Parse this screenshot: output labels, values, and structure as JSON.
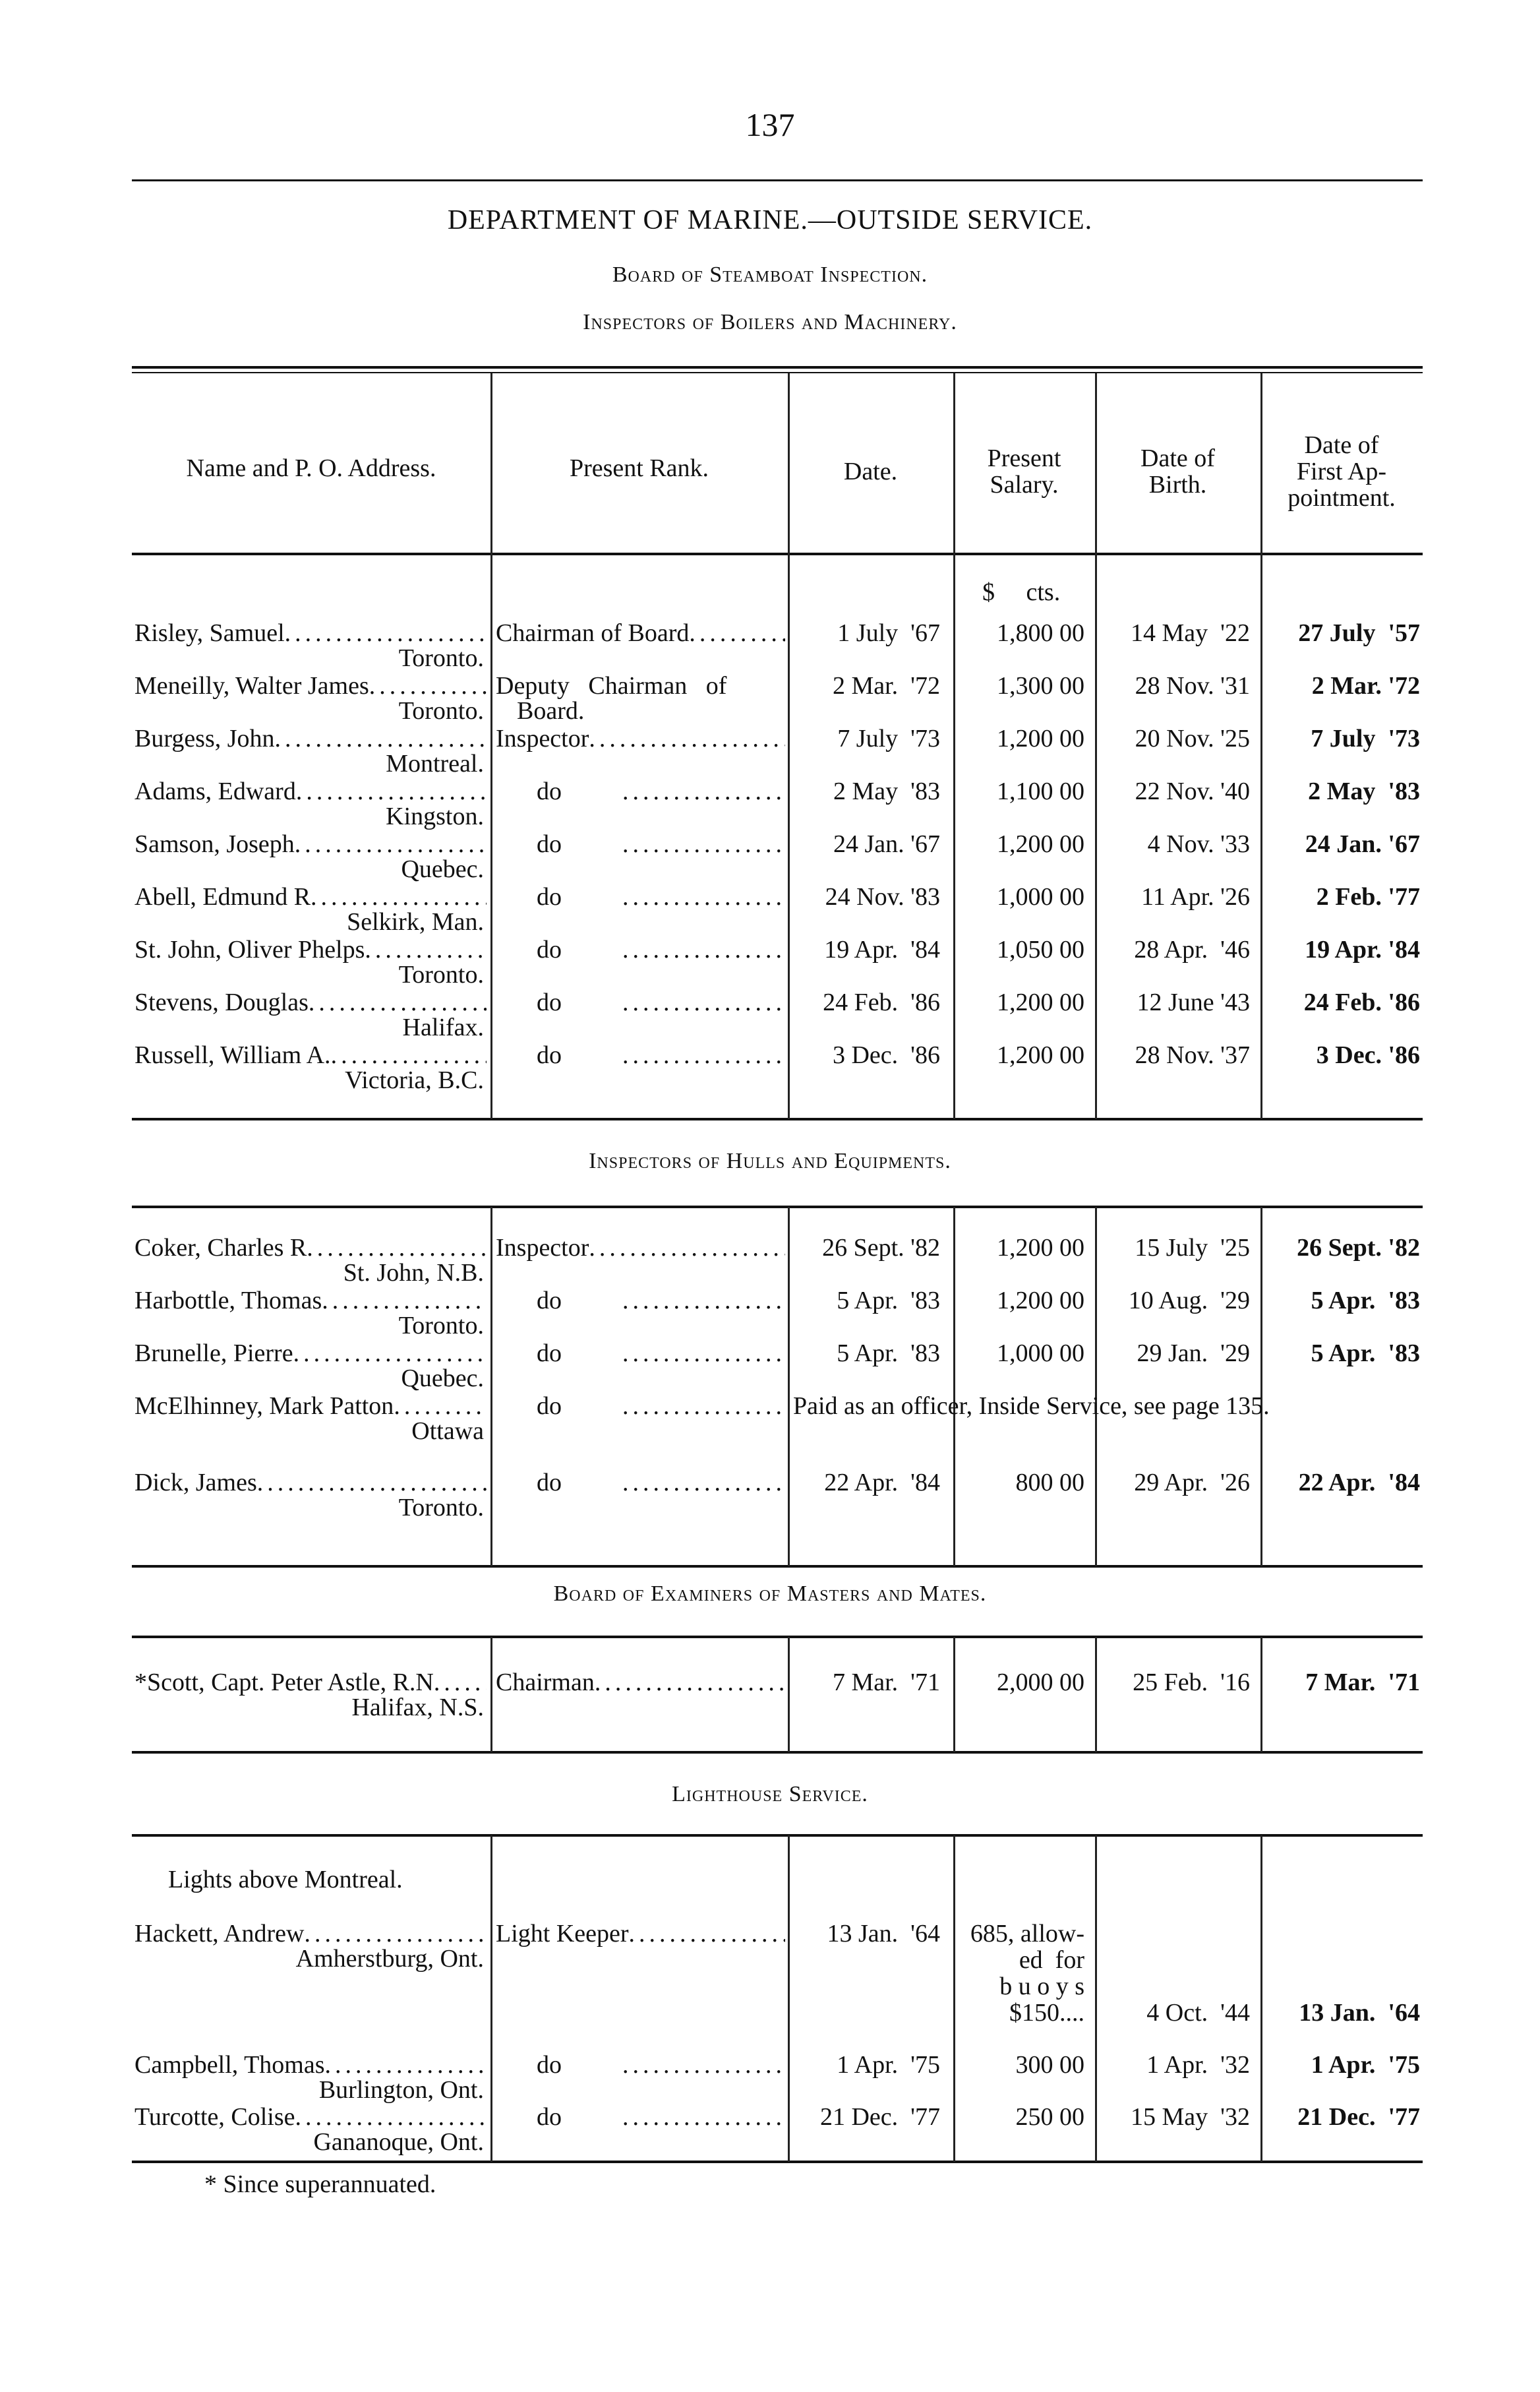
{
  "page_number": "137",
  "title": "DEPARTMENT OF MARINE.—OUTSIDE SERVICE.",
  "board_heading": "Board of Steamboat Inspection.",
  "headers": {
    "name": "Name and P. O. Address.",
    "rank": "Present Rank.",
    "date": "Date.",
    "salary_1": "Present",
    "salary_2": "Salary.",
    "birth_1": "Date of",
    "birth_2": "Birth.",
    "first_1": "Date of",
    "first_2": "First Ap-",
    "first_3": "pointment."
  },
  "currency_units": "$     cts.",
  "sections": [
    {
      "heading": "Inspectors of Boilers and Machinery.",
      "rows": [
        {
          "name": "Risley, Samuel",
          "place": "Toronto.",
          "rank": "Chairman of Board",
          "date": "1 July  '67",
          "salary": "1,800 00",
          "birth": "14 May  '22",
          "first": "27 July  '57"
        },
        {
          "name": "Meneilly, Walter James",
          "place": "Toronto.",
          "rank": "Deputy   Chairman   of",
          "rank_2": "Board.",
          "date": "2 Mar.  '72",
          "salary": "1,300 00",
          "birth": "28 Nov. '31",
          "first": "2 Mar. '72"
        },
        {
          "name": "Burgess, John",
          "place": "Montreal.",
          "rank": "Inspector",
          "date": "7 July  '73",
          "salary": "1,200 00",
          "birth": "20 Nov. '25",
          "first": "7 July  '73"
        },
        {
          "name": "Adams, Edward",
          "place": "Kingston.",
          "rank": "do",
          "date": "2 May  '83",
          "salary": "1,100 00",
          "birth": "22 Nov. '40",
          "first": "2 May  '83"
        },
        {
          "name": "Samson, Joseph",
          "place": "Quebec.",
          "rank": "do",
          "date": "24 Jan. '67",
          "salary": "1,200 00",
          "birth": "4 Nov. '33",
          "first": "24 Jan. '67"
        },
        {
          "name": "Abell, Edmund R",
          "place": "Selkirk, Man.",
          "rank": "do",
          "date": "24 Nov. '83",
          "salary": "1,000 00",
          "birth": "11 Apr. '26",
          "first": "2 Feb. '77"
        },
        {
          "name": "St. John, Oliver Phelps",
          "place": "Toronto.",
          "rank": "do",
          "date": "19 Apr.  '84",
          "salary": "1,050 00",
          "birth": "28 Apr.  '46",
          "first": "19 Apr. '84"
        },
        {
          "name": "Stevens, Douglas",
          "place": "Halifax.",
          "rank": "do",
          "date": "24 Feb.  '86",
          "salary": "1,200 00",
          "birth": "12 June '43",
          "first": "24 Feb. '86"
        },
        {
          "name": "Russell, William A.",
          "place": "Victoria, B.C.",
          "rank": "do",
          "date": "3 Dec.  '86",
          "salary": "1,200 00",
          "birth": "28 Nov. '37",
          "first": "3 Dec. '86"
        }
      ]
    },
    {
      "heading": "Inspectors of Hulls and Equipments.",
      "rows": [
        {
          "name": "Coker, Charles R",
          "place": "St. John, N.B.",
          "rank": "Inspector",
          "date": "26 Sept. '82",
          "salary": "1,200 00",
          "birth": "15 July  '25",
          "first": "26 Sept. '82"
        },
        {
          "name": "Harbottle, Thomas",
          "place": "Toronto.",
          "rank": "do",
          "date": "5 Apr.  '83",
          "salary": "1,200 00",
          "birth": "10 Aug.  '29",
          "first": "5 Apr.  '83"
        },
        {
          "name": "Brunelle, Pierre",
          "place": "Quebec.",
          "rank": "do",
          "date": "5 Apr.  '83",
          "salary": "1,000 00",
          "birth": "29 Jan.  '29",
          "first": "5 Apr.  '83"
        },
        {
          "name": "McElhinney, Mark Patton",
          "place": "Ottawa",
          "rank": "do",
          "note": "Paid as an officer, Inside Service, see page 135."
        },
        {
          "name": "Dick, James",
          "place": "Toronto.",
          "rank": "do",
          "date": "22 Apr.  '84",
          "salary": "800 00",
          "birth": "29 Apr.  '26",
          "first": "22 Apr.  '84"
        }
      ]
    },
    {
      "heading": "Board of Examiners of Masters and Mates.",
      "rows": [
        {
          "name": "*Scott, Capt. Peter Astle, R.N",
          "place": "Halifax, N.S.",
          "rank": "Chairman",
          "date": "7 Mar.  '71",
          "salary": "2,000 00",
          "birth": "25 Feb.  '16",
          "first": "7 Mar.  '71"
        }
      ]
    },
    {
      "heading": "Lighthouse Service.",
      "subheading": "Lights above Montreal.",
      "rows": [
        {
          "name": "Hackett, Andrew",
          "place": "Amherstburg, Ont.",
          "rank": "Light Keeper",
          "date": "13 Jan.  '64",
          "salary": "685, allow-",
          "salary_2": "ed  for",
          "salary_3": "b u o y s",
          "salary_4": "$150....",
          "birth": "4 Oct.  '44",
          "first": "13 Jan.  '64"
        },
        {
          "name": "Campbell, Thomas",
          "place": "Burlington, Ont.",
          "rank": "do",
          "date": "1 Apr.  '75",
          "salary": "300 00",
          "birth": "1 Apr.  '32",
          "first": "1 Apr.  '75"
        },
        {
          "name": "Turcotte, Colise",
          "place": "Gananoque, Ont.",
          "rank": "do",
          "date": "21 Dec.  '77",
          "salary": "250 00",
          "birth": "15 May  '32",
          "first": "21 Dec.  '77"
        }
      ]
    }
  ],
  "footnote": "* Since superannuated."
}
